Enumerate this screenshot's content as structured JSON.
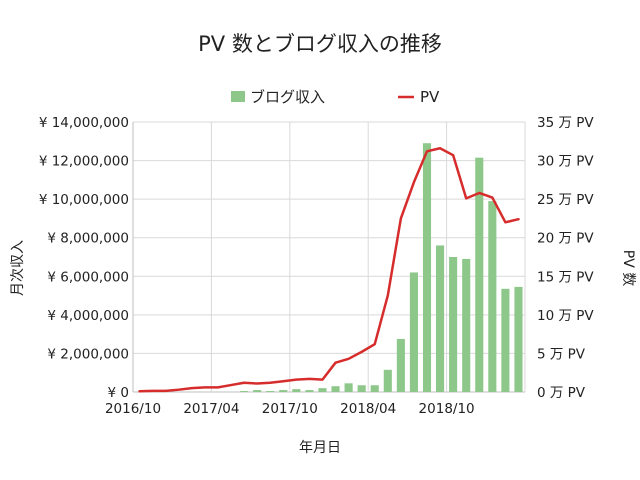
{
  "chart_data": {
    "type": "bar",
    "title": "PV 数とブログ収入の推移",
    "xlabel": "年月日",
    "ylabel_left": "月次収入",
    "ylabel_right": "PV 数",
    "legend_position": "top",
    "grid": true,
    "colors": {
      "bar": "#8dc88a",
      "line": "#d62c2c",
      "grid": "#d9d9d9",
      "axis": "#bfbfbf"
    },
    "categories": [
      "2016/10",
      "2016/11",
      "2016/12",
      "2017/01",
      "2017/02",
      "2017/03",
      "2017/04",
      "2017/05",
      "2017/06",
      "2017/07",
      "2017/08",
      "2017/09",
      "2017/10",
      "2017/11",
      "2017/12",
      "2018/01",
      "2018/02",
      "2018/03",
      "2018/04",
      "2018/05",
      "2018/06",
      "2018/07",
      "2018/08",
      "2018/09",
      "2018/10",
      "2018/11",
      "2018/12",
      "2019/01",
      "2019/02",
      "2019/03"
    ],
    "x_tick_labels": [
      "2016/10",
      "2017/04",
      "2017/10",
      "2018/04",
      "2018/10"
    ],
    "series": [
      {
        "name": "ブログ収入",
        "kind": "bar",
        "axis": "left",
        "values": [
          0,
          0,
          0,
          0,
          0,
          0,
          0,
          0,
          50000,
          100000,
          50000,
          100000,
          150000,
          100000,
          200000,
          300000,
          450000,
          350000,
          350000,
          1150000,
          2750000,
          6200000,
          12900000,
          7600000,
          7000000,
          6900000,
          12150000,
          9900000,
          5350000,
          5450000
        ]
      },
      {
        "name": "PV",
        "kind": "line",
        "axis": "right",
        "values": [
          0.1,
          0.15,
          0.15,
          0.3,
          0.5,
          0.6,
          0.6,
          0.9,
          1.2,
          1.1,
          1.2,
          1.4,
          1.6,
          1.7,
          1.6,
          3.8,
          4.3,
          5.2,
          6.2,
          12.5,
          22.5,
          27.2,
          31.2,
          31.6,
          30.7,
          25.1,
          25.8,
          25.2,
          22.0,
          22.4
        ]
      }
    ],
    "left_axis": {
      "ylim": [
        0,
        14000000
      ],
      "ticks": [
        "¥ 0",
        "¥ 2,000,000",
        "¥ 4,000,000",
        "¥ 6,000,000",
        "¥ 8,000,000",
        "¥ 10,000,000",
        "¥ 12,000,000",
        "¥ 14,000,000"
      ]
    },
    "right_axis": {
      "ylim": [
        0,
        35
      ],
      "ticks": [
        "0 万 PV",
        "5 万 PV",
        "10 万 PV",
        "15 万 PV",
        "20 万 PV",
        "25 万 PV",
        "30 万 PV",
        "35 万 PV"
      ]
    }
  }
}
